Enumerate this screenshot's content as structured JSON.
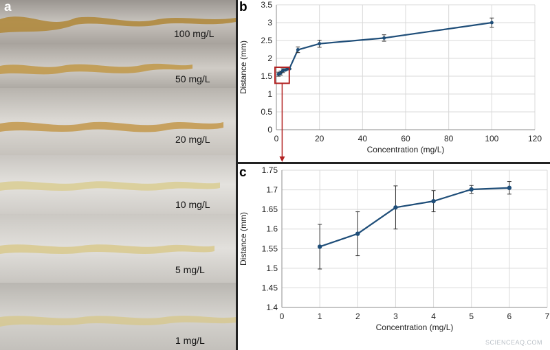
{
  "panel_a": {
    "letter": "a",
    "strips": [
      {
        "label": "100 mg/L",
        "color": "#b08a3e"
      },
      {
        "label": "50 mg/L",
        "color": "#c19a4e"
      },
      {
        "label": "20 mg/L",
        "color": "#c49b52"
      },
      {
        "label": "10 mg/L",
        "color": "#d9cc92"
      },
      {
        "label": "5 mg/L",
        "color": "#d8c98c"
      },
      {
        "label": "1 mg/L",
        "color": "#d6c890"
      }
    ]
  },
  "panel_b_letter": "b",
  "panel_c_letter": "c",
  "watermark": "SCIENCEAQ.COM",
  "chart_data": [
    {
      "type": "line",
      "panel": "b",
      "xlabel": "Concentration (mg/L)",
      "ylabel": "Distance (mm)",
      "xlim": [
        0,
        120
      ],
      "ylim": [
        0,
        3.5
      ],
      "xticks": [
        "0",
        "20",
        "40",
        "60",
        "80",
        "100",
        "120"
      ],
      "yticks": [
        "0",
        "0.5",
        "1",
        "1.5",
        "2",
        "2.5",
        "3",
        "3.5"
      ],
      "grid": true,
      "series": [
        {
          "x": [
            1,
            2,
            3,
            4,
            5,
            6,
            10,
            20,
            50,
            100
          ],
          "y": [
            1.555,
            1.588,
            1.655,
            1.671,
            1.701,
            1.705,
            2.24,
            2.41,
            2.57,
            3.0
          ],
          "err": [
            0.057,
            0.056,
            0.055,
            0.027,
            0.01,
            0.016,
            0.08,
            0.1,
            0.09,
            0.13
          ],
          "color": "#1f4e79"
        }
      ],
      "annotation": {
        "type": "zoom-box",
        "x_range": [
          0,
          6
        ],
        "y_range": [
          1.3,
          1.75
        ],
        "color": "#b22222"
      }
    },
    {
      "type": "line",
      "panel": "c",
      "xlabel": "Concentration (mg/L)",
      "ylabel": "Distance (mm)",
      "xlim": [
        0,
        7
      ],
      "ylim": [
        1.4,
        1.75
      ],
      "xticks": [
        "0",
        "1",
        "2",
        "3",
        "4",
        "5",
        "6",
        "7"
      ],
      "yticks": [
        "1.4",
        "1.45",
        "1.5",
        "1.55",
        "1.6",
        "1.65",
        "1.7",
        "1.75"
      ],
      "grid": true,
      "series": [
        {
          "x": [
            1,
            2,
            3,
            4,
            5,
            6
          ],
          "y": [
            1.555,
            1.588,
            1.655,
            1.671,
            1.701,
            1.705
          ],
          "err": [
            0.057,
            0.056,
            0.055,
            0.027,
            0.01,
            0.016
          ],
          "color": "#1f4e79"
        }
      ]
    }
  ]
}
